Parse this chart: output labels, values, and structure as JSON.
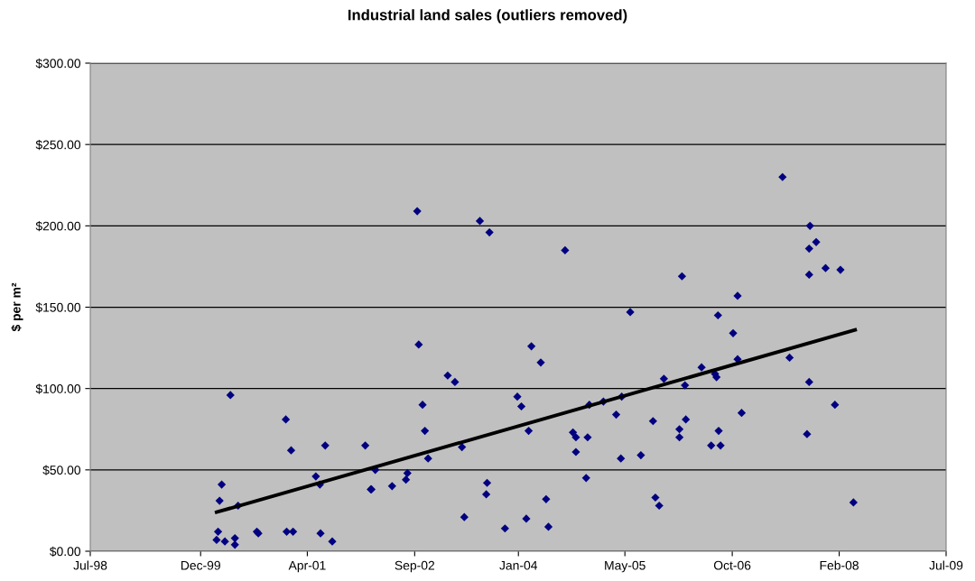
{
  "chart_data": {
    "type": "scatter",
    "title": "Industrial land sales (outliers removed)",
    "ylabel": "$ per m²",
    "series": [
      {
        "color": "#000080",
        "marker": "diamond",
        "x": [
          "2000-02-14",
          "2000-02-21",
          "2000-03-24",
          "2000-05-10",
          "2000-05-10",
          "2000-02-28",
          "2000-03-09",
          "2000-04-19",
          "2000-05-25",
          "2000-08-21",
          "2000-08-28",
          "2001-01-04",
          "2001-01-29",
          "2001-01-08",
          "2001-02-07",
          "2001-05-25",
          "2001-06-13",
          "2001-07-08",
          "2001-06-16",
          "2001-08-10",
          "2002-01-12",
          "2002-02-07",
          "2002-02-10",
          "2002-02-28",
          "2002-05-18",
          "2002-07-22",
          "2002-07-29",
          "2002-09-13",
          "2002-09-20",
          "2002-10-08",
          "2002-10-19",
          "2002-11-03",
          "2003-02-03",
          "2003-03-09",
          "2003-04-11",
          "2003-04-22",
          "2003-07-04",
          "2003-08-18",
          "2003-08-03",
          "2003-08-07",
          "2003-10-30",
          "2003-12-27",
          "2004-01-15",
          "2004-02-07",
          "2004-02-18",
          "2004-03-02",
          "2004-04-15",
          "2004-05-10",
          "2004-05-21",
          "2004-08-07",
          "2004-09-13",
          "2004-09-27",
          "2004-09-27",
          "2004-11-14",
          "2004-11-21",
          "2004-11-29",
          "2005-02-03",
          "2005-04-04",
          "2005-04-26",
          "2005-04-30",
          "2005-06-09",
          "2005-07-29",
          "2005-09-24",
          "2005-10-05",
          "2005-10-23",
          "2005-11-14",
          "2006-01-26",
          "2006-01-26",
          "2006-02-25",
          "2006-02-21",
          "2006-02-07",
          "2006-05-10",
          "2006-07-12",
          "2006-07-19",
          "2006-07-26",
          "2006-06-24",
          "2006-07-29",
          "2006-08-07",
          "2006-10-05",
          "2006-10-26",
          "2006-10-26",
          "2006-11-14",
          "2007-05-25",
          "2007-06-27",
          "2007-09-17",
          "2007-09-27",
          "2007-09-27",
          "2007-09-27",
          "2007-10-01",
          "2007-10-30",
          "2007-12-13",
          "2008-02-21",
          "2008-01-26",
          "2008-04-22"
        ],
        "values": [
          7,
          12,
          6,
          8,
          4,
          31,
          41,
          96,
          28,
          12,
          11,
          81,
          62,
          12,
          12,
          46,
          41,
          65,
          11,
          6,
          65,
          38,
          38,
          50,
          40,
          44,
          48,
          209,
          127,
          90,
          74,
          57,
          108,
          104,
          64,
          21,
          203,
          196,
          35,
          42,
          14,
          95,
          89,
          20,
          74,
          126,
          116,
          32,
          15,
          185,
          73,
          70,
          61,
          45,
          70,
          90,
          92,
          84,
          57,
          95,
          147,
          59,
          80,
          33,
          28,
          106,
          75,
          70,
          81,
          102,
          169,
          113,
          109,
          107,
          145,
          65,
          74,
          65,
          134,
          157,
          118,
          85,
          230,
          119,
          72,
          104,
          170,
          186,
          200,
          190,
          174,
          173,
          90,
          30
        ]
      },
      {
        "type": "line",
        "color": "#000000",
        "marker": "none",
        "line_style": "solid",
        "x": [
          "2000-02-14",
          "2008-04-30"
        ],
        "values": [
          24,
          136
        ]
      }
    ],
    "xlim": [
      "1998-07-01",
      "2009-07-01"
    ],
    "xticks": [
      {
        "value": "1998-07-01",
        "label": "Jul-98"
      },
      {
        "value": "1999-12-01",
        "label": "Dec-99"
      },
      {
        "value": "2001-04-15",
        "label": "Apr-01"
      },
      {
        "value": "2002-09-01",
        "label": "Sep-02"
      },
      {
        "value": "2004-01-01",
        "label": "Jan-04"
      },
      {
        "value": "2005-05-15",
        "label": "May-05"
      },
      {
        "value": "2006-10-01",
        "label": "Oct-06"
      },
      {
        "value": "2008-02-15",
        "label": "Feb-08"
      },
      {
        "value": "2009-07-01",
        "label": "Jul-09"
      }
    ],
    "ylim": [
      0,
      300
    ],
    "yticks": [
      {
        "value": 0,
        "label": "$0.00"
      },
      {
        "value": 50,
        "label": "$50.00"
      },
      {
        "value": 100,
        "label": "$100.00"
      },
      {
        "value": 150,
        "label": "$150.00"
      },
      {
        "value": 200,
        "label": "$200.00"
      },
      {
        "value": 250,
        "label": "$250.00"
      },
      {
        "value": 300,
        "label": "$300.00"
      }
    ],
    "grid": "y"
  }
}
